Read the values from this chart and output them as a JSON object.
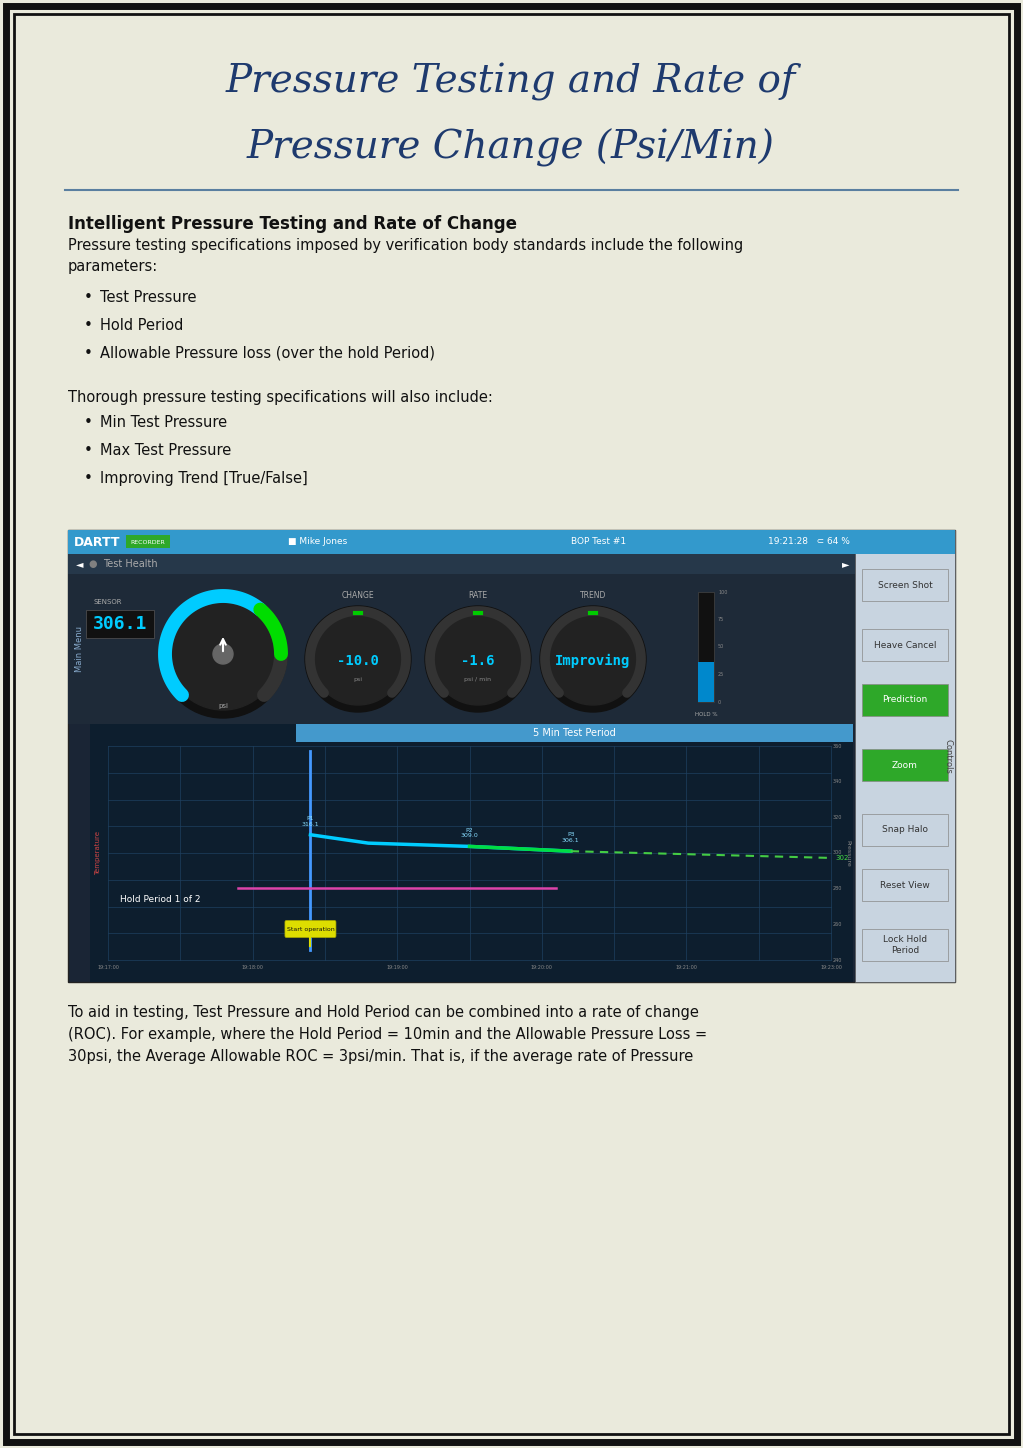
{
  "title_line1": "Pressure Testing and Rate of",
  "title_line2": "Pressure Change (Psi/Min)",
  "title_color": "#1e3a6e",
  "title_fontsize": 28,
  "bg_color": "#eaeadc",
  "border_color": "#111111",
  "separator_color": "#5a7fa0",
  "section_heading": "Intelligent Pressure Testing and Rate of Change",
  "section_heading_fontsize": 12,
  "body_fontsize": 10.5,
  "body_text1": "Pressure testing specifications imposed by verification body standards include the following\nparameters:",
  "bullets1": [
    "Test Pressure",
    "Hold Period",
    "Allowable Pressure loss (over the hold Period)"
  ],
  "body_text2": "Thorough pressure testing specifications will also include:",
  "bullets2": [
    "Min Test Pressure",
    "Max Test Pressure",
    "Improving Trend [True/False]"
  ],
  "footer_text_line1": "To aid in testing, Test Pressure and Hold Period can be combined into a rate of change",
  "footer_text_line2": "(ROC). For example, where the Hold Period = 10min and the Allowable Pressure Loss =",
  "footer_text_line3": "30psi, the Average Allowable ROC = 3psi/min. That is, if the average rate of Pressure",
  "dartt_header_color": "#3399cc",
  "button_green": "#2ea829",
  "gauge_area_bg": "#1e2a38",
  "chart_bg": "#0d1e2e",
  "ctrl_panel_bg": "#dde5ee",
  "app_bg": "#1a2535"
}
